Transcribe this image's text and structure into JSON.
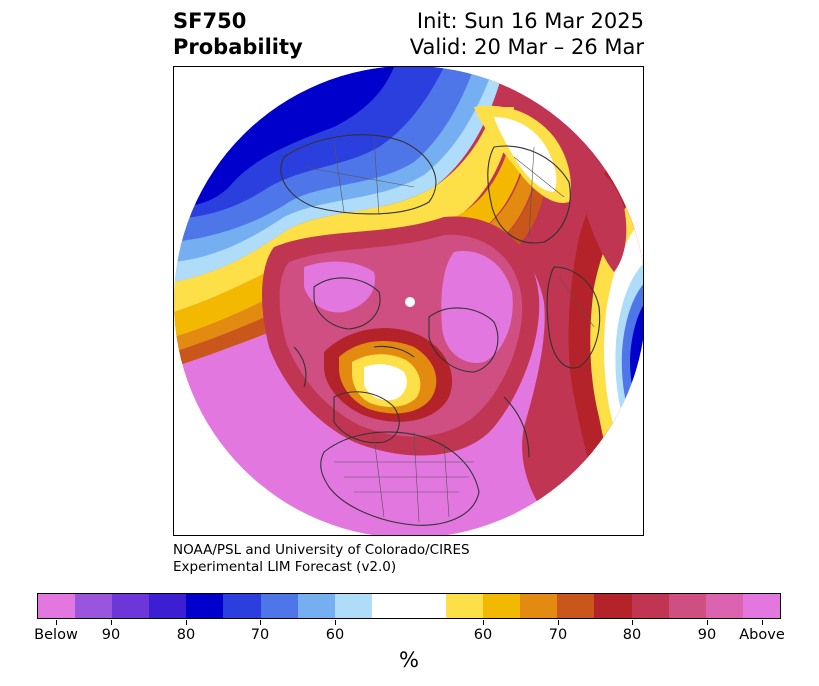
{
  "header": {
    "variable": "SF750",
    "product": "Probability",
    "init": "Init: Sun 16 Mar 2025",
    "valid": "Valid: 20 Mar – 26 Mar"
  },
  "credits": {
    "line1": "NOAA/PSL and University of Colorado/CIRES",
    "line2": "Experimental LIM Forecast (v2.0)"
  },
  "colorbar": {
    "unit": "%",
    "colors": [
      "#e377e0",
      "#9b54de",
      "#6d36d8",
      "#3d1fd3",
      "#0000cc",
      "#2a3fde",
      "#4f76e8",
      "#76aff1",
      "#aedcf9",
      "#ffffff",
      "#fde048",
      "#f3b800",
      "#e38a10",
      "#c9561a",
      "#b4222a",
      "#c03552",
      "#cf4f82",
      "#dc63b0",
      "#e377e0"
    ],
    "labels": [
      "Below",
      "90",
      "80",
      "70",
      "60",
      "60",
      "70",
      "80",
      "90",
      "Above"
    ]
  },
  "map": {
    "projection": "north-polar-stereographic",
    "description_features": [
      "north-america",
      "eurasia",
      "arctic-ocean",
      "pacific-ocean",
      "atlantic-ocean"
    ]
  }
}
